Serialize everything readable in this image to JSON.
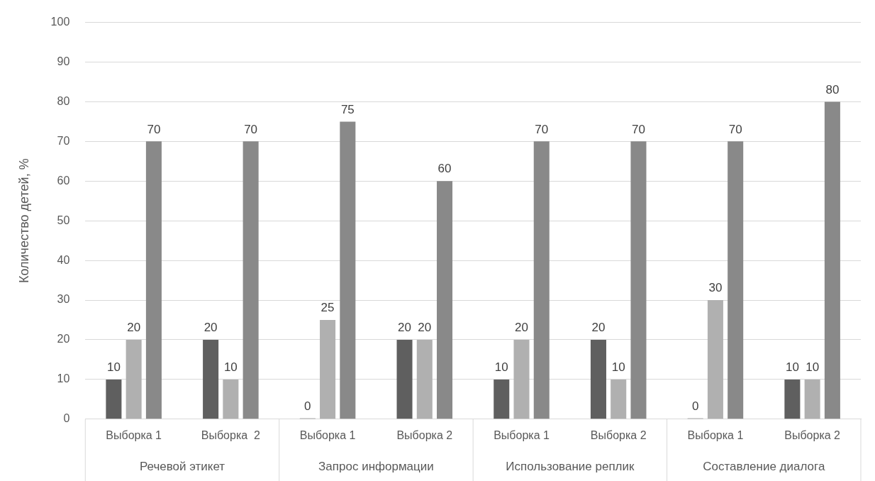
{
  "chart_data": {
    "type": "bar",
    "ylabel": "Количество детей, %",
    "categories": [
      "Выборка 1",
      "Выборка  2",
      "Выборка 1",
      "Выборка 2",
      "Выборка 1",
      "Выборка 2",
      "Выборка 1",
      "Выборка 2"
    ],
    "series": [
      {
        "color": "#5f5f5f",
        "values": [
          10,
          20,
          0,
          20,
          10,
          20,
          0,
          10
        ]
      },
      {
        "color": "#b0b0b0",
        "values": [
          20,
          10,
          25,
          20,
          20,
          10,
          30,
          10
        ]
      },
      {
        "color": "#898989",
        "values": [
          70,
          70,
          75,
          60,
          70,
          70,
          70,
          80
        ]
      }
    ],
    "annotations": [
      "Речевой этикет",
      "Запрос информации",
      "Использование реплик",
      "Составление диалога"
    ],
    "ylim": [
      0,
      100
    ],
    "yticks": [
      0,
      10,
      20,
      30,
      40,
      50,
      60,
      70,
      80,
      90,
      100
    ],
    "grid": "y",
    "legend": false,
    "data_labels": true
  }
}
